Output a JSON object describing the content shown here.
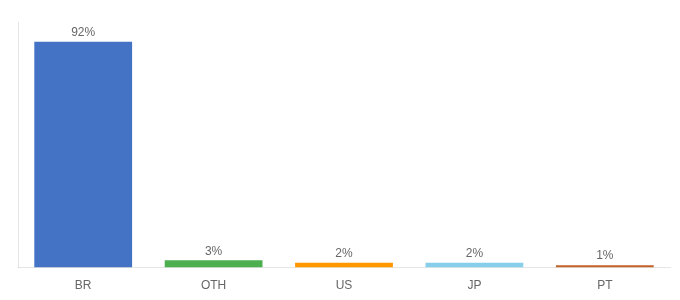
{
  "chart_data": {
    "type": "bar",
    "categories": [
      "BR",
      "OTH",
      "US",
      "JP",
      "PT"
    ],
    "values": [
      92,
      3,
      2,
      2,
      1
    ],
    "value_labels": [
      "92%",
      "3%",
      "2%",
      "2%",
      "1%"
    ],
    "colors": [
      "#4472c4",
      "#4caf50",
      "#ff9800",
      "#87ceeb",
      "#c0622a"
    ],
    "ylim": [
      0,
      100
    ],
    "grid": false,
    "data_labels": true,
    "tick_labels": "x"
  }
}
